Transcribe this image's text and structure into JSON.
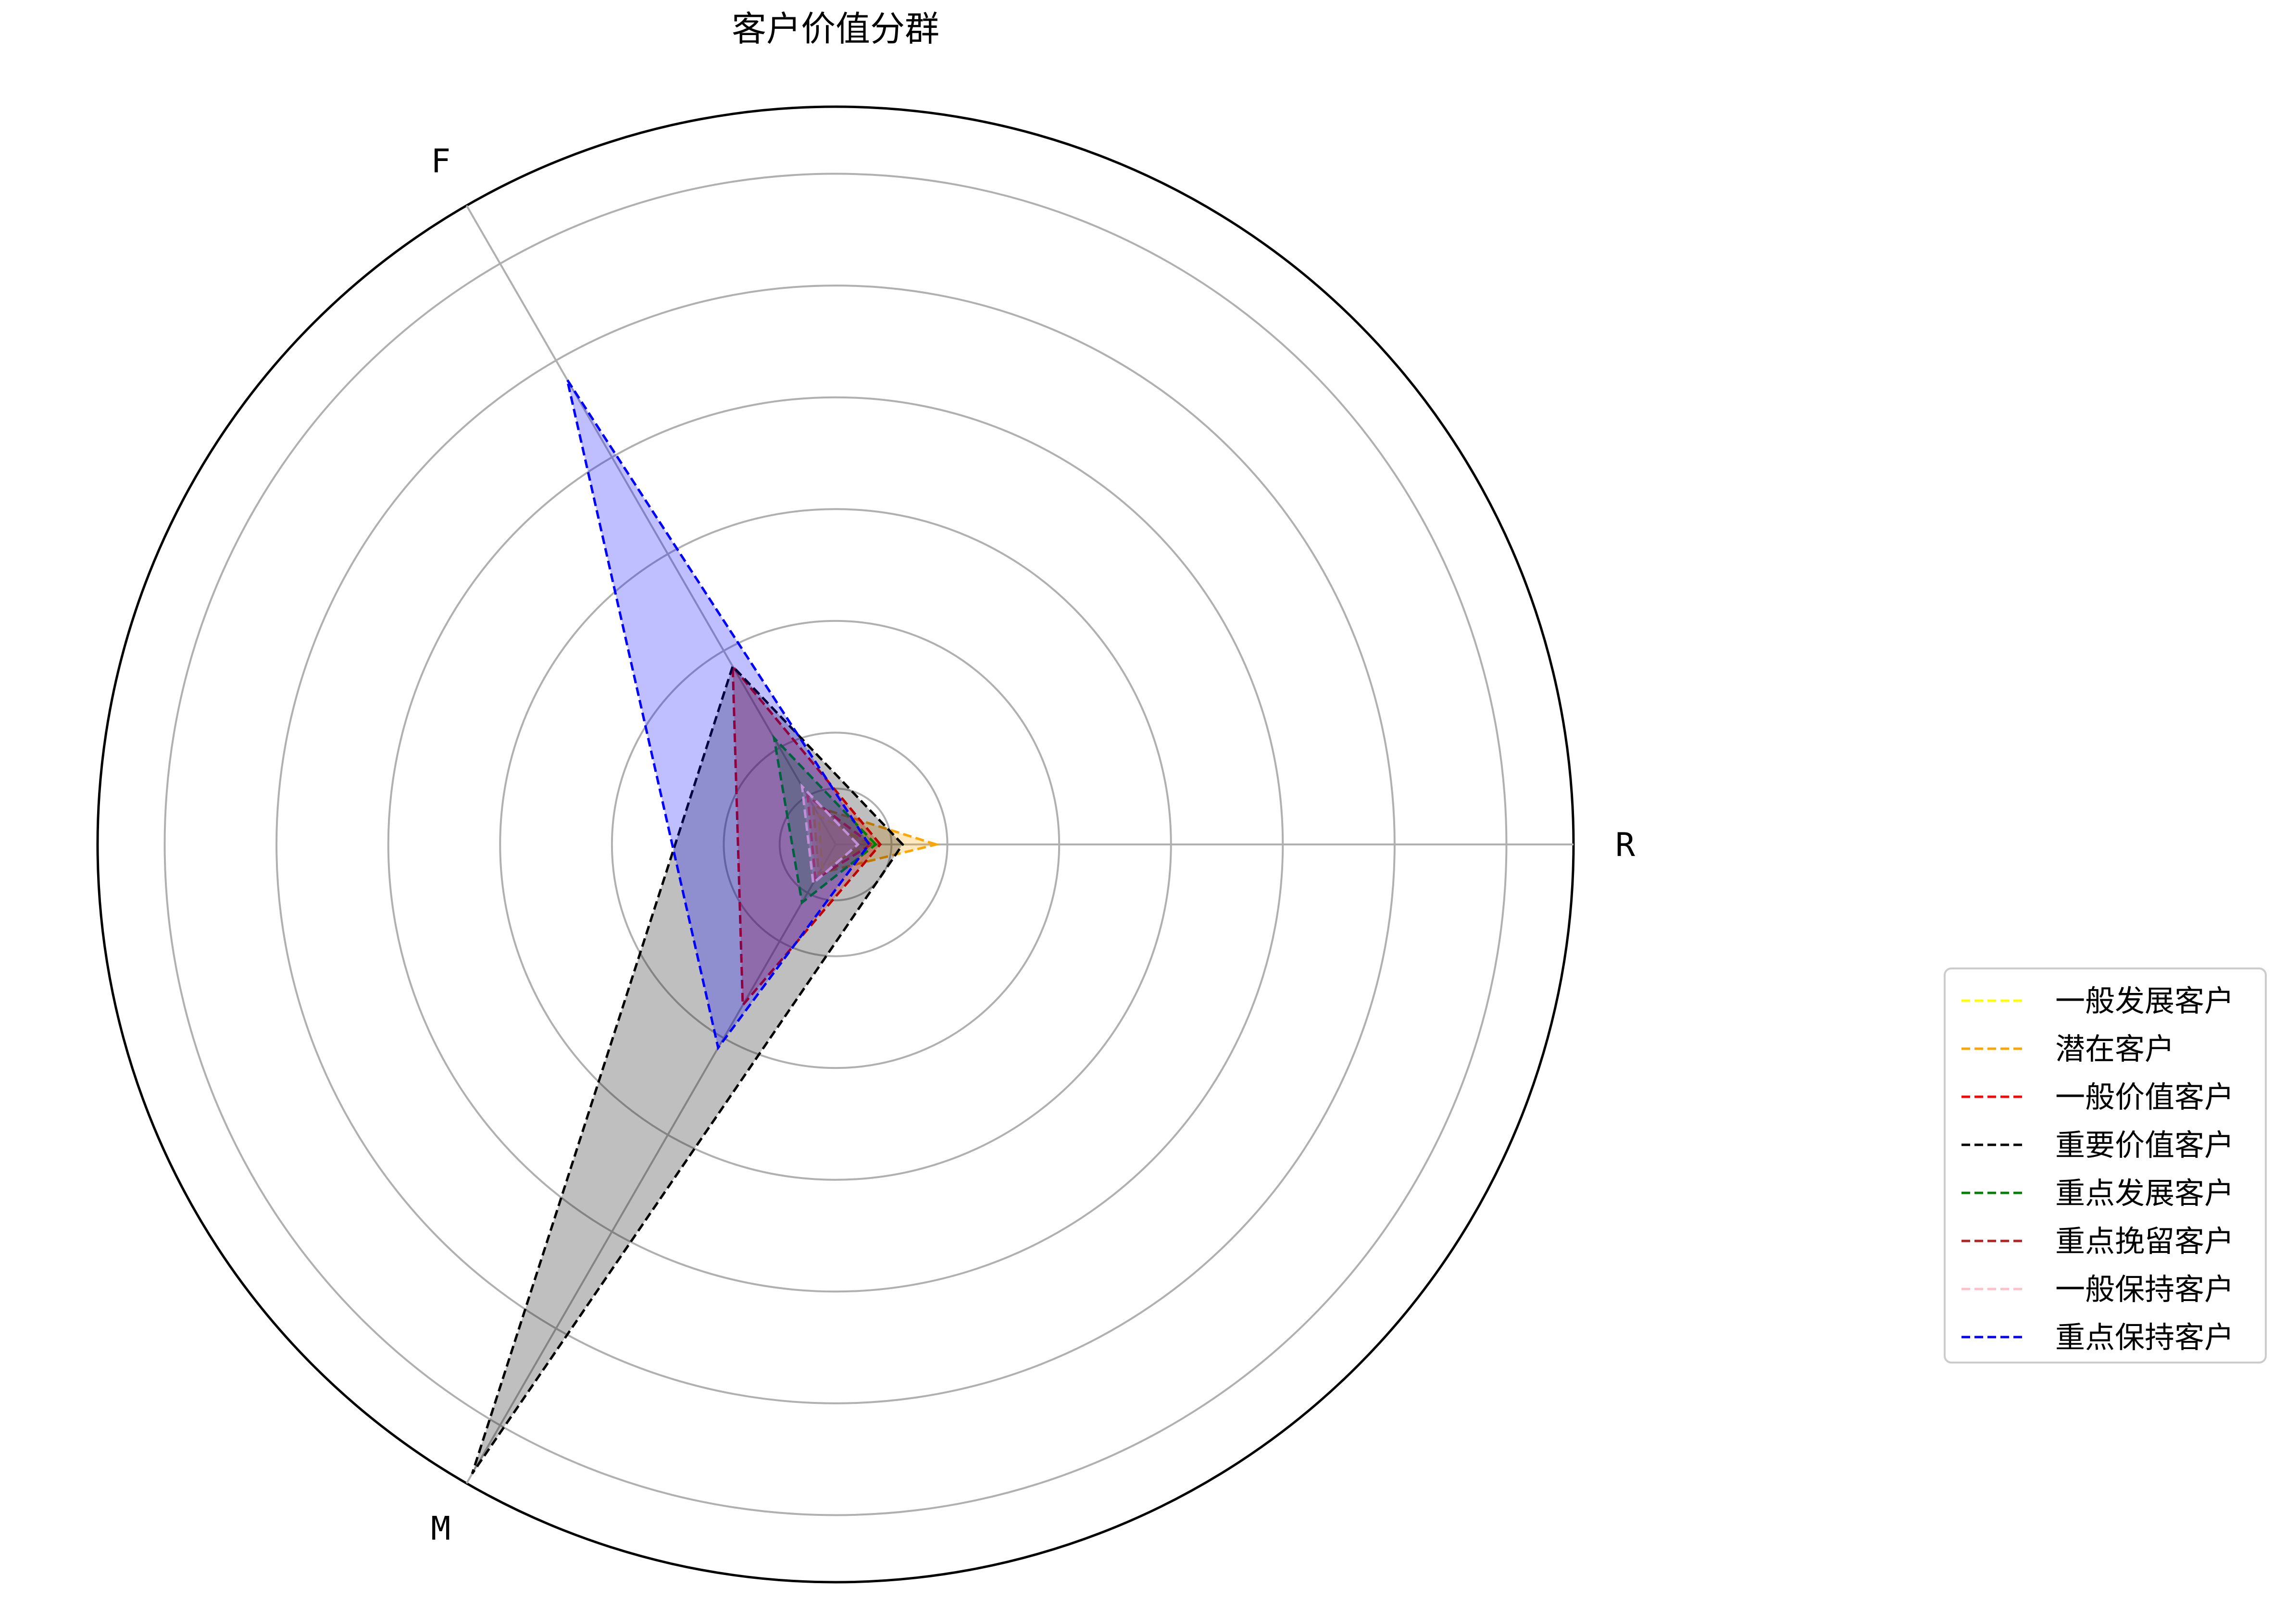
{
  "chart_data": {
    "type": "radar",
    "title": "客户价值分群",
    "axes": [
      "R",
      "F",
      "M"
    ],
    "rlim": [
      0,
      3.3
    ],
    "rgrid": [
      0.25,
      0.5,
      1.0,
      1.5,
      2.0,
      2.5,
      3.0,
      3.3
    ],
    "grid": true,
    "legend_position": "center-right",
    "series": [
      {
        "name": "一般发展客户",
        "color": "#ffff00",
        "values": [
          0.15,
          0.15,
          0.12
        ]
      },
      {
        "name": "潜在客户",
        "color": "#ffa500",
        "values": [
          0.45,
          0.2,
          0.15
        ]
      },
      {
        "name": "一般价值客户",
        "color": "#ff0000",
        "values": [
          0.2,
          0.92,
          0.83
        ]
      },
      {
        "name": "重要价值客户",
        "color": "#000000",
        "values": [
          0.3,
          0.92,
          3.25
        ]
      },
      {
        "name": "重点发展客户",
        "color": "#008000",
        "values": [
          0.18,
          0.55,
          0.3
        ]
      },
      {
        "name": "重点挽留客户",
        "color": "#b22222",
        "values": [
          0.16,
          0.25,
          0.18
        ]
      },
      {
        "name": "一般保持客户",
        "color": "#ffc0cb",
        "values": [
          0.1,
          0.3,
          0.2
        ]
      },
      {
        "name": "重点保持客户",
        "color": "#0000ff",
        "values": [
          0.15,
          2.4,
          1.05
        ]
      }
    ]
  }
}
